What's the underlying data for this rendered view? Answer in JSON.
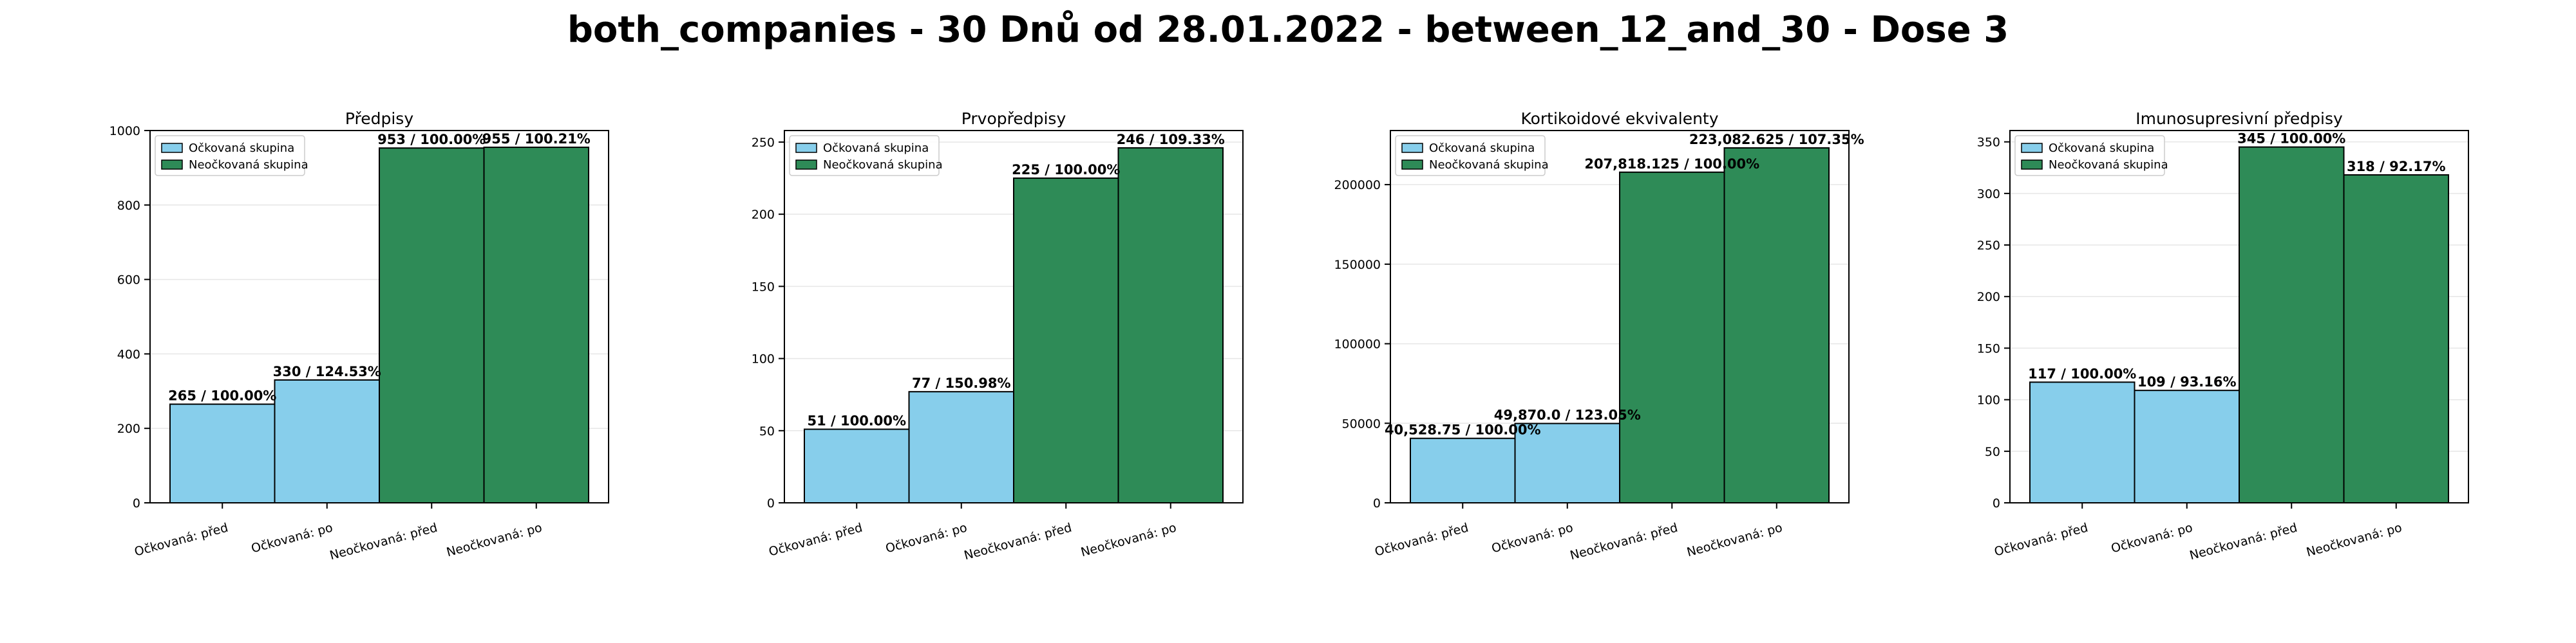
{
  "suptitle": "both_companies - 30 Dnů od 28.01.2022 - between_12_and_30 - Dose 3",
  "colors": {
    "vaccinated": "#87ceeb",
    "unvaccinated": "#2e8b57",
    "edge": "#000000",
    "grid": "#e6e6e6"
  },
  "legend_entries": [
    "Očkovaná skupina",
    "Neočkovaná skupina"
  ],
  "chart_data": [
    {
      "type": "bar",
      "title": "Předpisy",
      "categories": [
        "Očkovaná: před",
        "Očkovaná: po",
        "Neočkovaná: před",
        "Neočkovaná: po"
      ],
      "values": [
        265,
        330,
        953,
        955
      ],
      "data_labels": [
        "265 / 100.00%",
        "330 / 124.53%",
        "953 / 100.00%",
        "955 / 100.21%"
      ],
      "bar_groups": [
        "vaccinated",
        "vaccinated",
        "unvaccinated",
        "unvaccinated"
      ],
      "ylim": [
        0,
        1000
      ],
      "yticks": [
        0,
        200,
        400,
        600,
        800,
        1000
      ],
      "ytick_labels": [
        "0",
        "200",
        "400",
        "600",
        "800",
        "1000"
      ],
      "legend_position": "upper-left",
      "grid": true
    },
    {
      "type": "bar",
      "title": "Prvopředpisy",
      "categories": [
        "Očkovaná: před",
        "Očkovaná: po",
        "Neočkovaná: před",
        "Neočkovaná: po"
      ],
      "values": [
        51,
        77,
        225,
        246
      ],
      "data_labels": [
        "51 / 100.00%",
        "77 / 150.98%",
        "225 / 100.00%",
        "246 / 109.33%"
      ],
      "bar_groups": [
        "vaccinated",
        "vaccinated",
        "unvaccinated",
        "unvaccinated"
      ],
      "ylim": [
        0,
        258
      ],
      "yticks": [
        0,
        50,
        100,
        150,
        200,
        250
      ],
      "ytick_labels": [
        "0",
        "50",
        "100",
        "150",
        "200",
        "250"
      ],
      "legend_position": "upper-left",
      "grid": true
    },
    {
      "type": "bar",
      "title": "Kortikoidové ekvivalenty",
      "categories": [
        "Očkovaná: před",
        "Očkovaná: po",
        "Neočkovaná: před",
        "Neočkovaná: po"
      ],
      "values": [
        40528.75,
        49870.0,
        207818.125,
        223082.625
      ],
      "data_labels": [
        "40,528.75 / 100.00%",
        "49,870.0 / 123.05%",
        "207,818.125 / 100.00%",
        "223,082.625 / 107.35%"
      ],
      "bar_groups": [
        "vaccinated",
        "vaccinated",
        "unvaccinated",
        "unvaccinated"
      ],
      "ylim": [
        0,
        234000
      ],
      "yticks": [
        0,
        50000,
        100000,
        150000,
        200000
      ],
      "ytick_labels": [
        "0",
        "50000",
        "100000",
        "150000",
        "200000"
      ],
      "legend_position": "upper-left",
      "grid": true
    },
    {
      "type": "bar",
      "title": "Imunosupresivní předpisy",
      "categories": [
        "Očkovaná: před",
        "Očkovaná: po",
        "Neočkovaná: před",
        "Neočkovaná: po"
      ],
      "values": [
        117,
        109,
        345,
        318
      ],
      "data_labels": [
        "117 / 100.00%",
        "109 / 93.16%",
        "345 / 100.00%",
        "318 / 92.17%"
      ],
      "bar_groups": [
        "vaccinated",
        "vaccinated",
        "unvaccinated",
        "unvaccinated"
      ],
      "ylim": [
        0,
        361
      ],
      "yticks": [
        0,
        50,
        100,
        150,
        200,
        250,
        300,
        350
      ],
      "ytick_labels": [
        "0",
        "50",
        "100",
        "150",
        "200",
        "250",
        "300",
        "350"
      ],
      "legend_position": "upper-left",
      "grid": true
    }
  ]
}
